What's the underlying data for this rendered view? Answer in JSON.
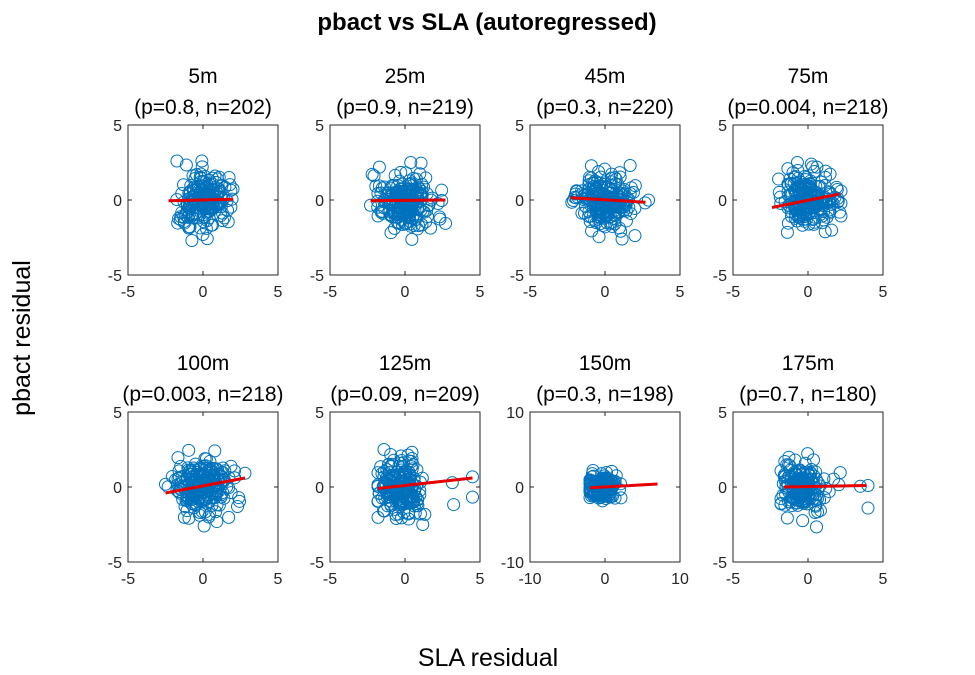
{
  "figure": {
    "title": "pbact vs SLA (autoregressed)",
    "xlabel": "SLA residual",
    "ylabel": "pbact residual",
    "colors": {
      "points": "#0072BD",
      "fit": "#E50000",
      "axes": "#262626"
    }
  },
  "chart_data": [
    {
      "type": "scatter",
      "title": [
        "5m",
        "(p=0.8, n=202)"
      ],
      "xlim": [
        -5,
        5
      ],
      "ylim": [
        -5,
        5
      ],
      "xticks": [
        "-5",
        "0",
        "5"
      ],
      "yticks": [
        "-5",
        "0",
        "5"
      ],
      "n": 202,
      "x_center": 0,
      "x_spread": 0.8,
      "x_range": [
        -2.3,
        2.0
      ],
      "y_spread": 0.9,
      "y_range": [
        -2.7,
        2.6
      ],
      "fit": {
        "x": [
          -2.3,
          2.0
        ],
        "y": [
          -0.05,
          0.05
        ]
      }
    },
    {
      "type": "scatter",
      "title": [
        "25m",
        "(p=0.9, n=219)"
      ],
      "xlim": [
        -5,
        5
      ],
      "ylim": [
        -5,
        5
      ],
      "xticks": [
        "-5",
        "0",
        "5"
      ],
      "yticks": [
        "-5",
        "0",
        "5"
      ],
      "n": 219,
      "x_center": 0,
      "x_spread": 0.9,
      "x_range": [
        -2.3,
        2.7
      ],
      "y_spread": 0.9,
      "y_range": [
        -2.7,
        2.5
      ],
      "fit": {
        "x": [
          -2.3,
          2.7
        ],
        "y": [
          -0.05,
          0.0
        ]
      }
    },
    {
      "type": "scatter",
      "title": [
        "45m",
        "(p=0.3, n=220)"
      ],
      "xlim": [
        -5,
        5
      ],
      "ylim": [
        -5,
        5
      ],
      "xticks": [
        "-5",
        "0",
        "5"
      ],
      "yticks": [
        "-5",
        "0",
        "5"
      ],
      "n": 220,
      "x_center": 0,
      "x_spread": 0.9,
      "x_range": [
        -2.3,
        2.9
      ],
      "y_spread": 0.9,
      "y_range": [
        -2.6,
        2.6
      ],
      "fit": {
        "x": [
          -2.3,
          2.7
        ],
        "y": [
          0.15,
          -0.15
        ]
      }
    },
    {
      "type": "scatter",
      "title": [
        "75m",
        "(p=0.004, n=218)"
      ],
      "xlim": [
        -5,
        5
      ],
      "ylim": [
        -5,
        5
      ],
      "xticks": [
        "-5",
        "0",
        "5"
      ],
      "yticks": [
        "-5",
        "0",
        "5"
      ],
      "n": 218,
      "x_center": 0,
      "x_spread": 0.9,
      "x_range": [
        -2.4,
        2.2
      ],
      "y_spread": 0.9,
      "y_range": [
        -2.7,
        2.5
      ],
      "fit": {
        "x": [
          -2.4,
          2.1
        ],
        "y": [
          -0.5,
          0.4
        ]
      }
    },
    {
      "type": "scatter",
      "title": [
        "100m",
        "(p=0.003, n=218)"
      ],
      "xlim": [
        -5,
        5
      ],
      "ylim": [
        -5,
        5
      ],
      "xticks": [
        "-5",
        "0",
        "5"
      ],
      "yticks": [
        "-5",
        "0",
        "5"
      ],
      "n": 218,
      "x_center": 0,
      "x_spread": 0.9,
      "x_range": [
        -2.5,
        2.8
      ],
      "y_spread": 0.9,
      "y_range": [
        -2.6,
        2.5
      ],
      "fit": {
        "x": [
          -2.5,
          2.8
        ],
        "y": [
          -0.4,
          0.6
        ]
      }
    },
    {
      "type": "scatter",
      "title": [
        "125m",
        "(p=0.09, n=209)"
      ],
      "xlim": [
        -5,
        5
      ],
      "ylim": [
        -5,
        5
      ],
      "xticks": [
        "-5",
        "0",
        "5"
      ],
      "yticks": [
        "-5",
        "0",
        "5"
      ],
      "n": 209,
      "x_center": -0.3,
      "x_spread": 0.8,
      "x_range": [
        -1.8,
        4.5
      ],
      "y_spread": 0.9,
      "y_range": [
        -2.5,
        2.5
      ],
      "fit": {
        "x": [
          -1.8,
          4.5
        ],
        "y": [
          -0.1,
          0.6
        ]
      }
    },
    {
      "type": "scatter",
      "title": [
        "150m",
        "(p=0.3, n=198)"
      ],
      "xlim": [
        -10,
        10
      ],
      "ylim": [
        -10,
        10
      ],
      "xticks": [
        "-10",
        "0",
        "10"
      ],
      "yticks": [
        "-10",
        "0",
        "10"
      ],
      "n": 198,
      "x_center": -0.5,
      "x_spread": 1.0,
      "x_range": [
        -2.0,
        7.0
      ],
      "y_spread": 0.8,
      "y_range": [
        -2.2,
        2.2
      ],
      "fit": {
        "x": [
          -2.0,
          7.0
        ],
        "y": [
          -0.1,
          0.4
        ]
      }
    },
    {
      "type": "scatter",
      "title": [
        "175m",
        "(p=0.7, n=180)"
      ],
      "xlim": [
        -5,
        5
      ],
      "ylim": [
        -5,
        5
      ],
      "xticks": [
        "-5",
        "0",
        "5"
      ],
      "yticks": [
        "-5",
        "0",
        "5"
      ],
      "n": 180,
      "x_center": -0.4,
      "x_spread": 0.7,
      "x_range": [
        -1.8,
        4.0
      ],
      "y_spread": 0.9,
      "y_range": [
        -2.8,
        2.4
      ],
      "fit": {
        "x": [
          -1.6,
          3.9
        ],
        "y": [
          0.0,
          0.1
        ]
      }
    }
  ]
}
